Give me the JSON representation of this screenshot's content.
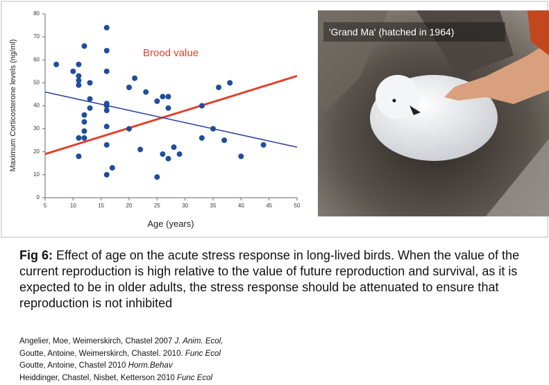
{
  "chart_data": {
    "type": "scatter",
    "ylabel": "Maximum Corticosterone levels (ng/ml)",
    "xlabel": "Age (years)",
    "annotation": "Brood value",
    "color": "#1f4e9a",
    "x": [
      7,
      10,
      11,
      11,
      11,
      11,
      12,
      13,
      13,
      13,
      12,
      12,
      12,
      12,
      11,
      11,
      16,
      16,
      16,
      16,
      16,
      16,
      16,
      16,
      16,
      17,
      20,
      21,
      20,
      22,
      23,
      25,
      26,
      27,
      27,
      25,
      26,
      27,
      28,
      29,
      33,
      33,
      35,
      36,
      38,
      37,
      40,
      44
    ],
    "values": [
      58,
      55,
      58,
      53,
      51,
      49,
      66,
      50,
      43,
      39,
      36,
      33,
      29,
      26,
      26,
      18,
      74,
      64,
      55,
      41,
      40,
      38,
      31,
      23,
      10,
      13,
      48,
      52,
      30,
      21,
      46,
      42,
      44,
      44,
      39,
      9,
      19,
      17,
      22,
      19,
      40,
      26,
      30,
      48,
      50,
      25,
      18,
      23
    ],
    "lines": [
      {
        "color": "#e0412c",
        "x": [
          5,
          50
        ],
        "values": [
          19,
          53
        ]
      },
      {
        "color": "#2a3f9e",
        "x": [
          5,
          50
        ],
        "values": [
          46,
          22
        ]
      }
    ],
    "xlim": [
      5,
      50
    ],
    "ylim": [
      0,
      80
    ],
    "xticks": [
      5,
      10,
      15,
      20,
      25,
      30,
      35,
      40,
      45,
      50
    ],
    "yticks": [
      0,
      10,
      20,
      30,
      40,
      50,
      60,
      70,
      80
    ]
  },
  "photo": {
    "label": "'Grand Ma' (hatched in 1964)"
  },
  "caption": {
    "label": "Fig 6:",
    "text": "Effect of age on the acute stress response in long-lived birds. When the value of the current reproduction is high relative to the value of future reproduction and survival, as it is expected to be in older adults, the stress response should be attenuated to ensure that reproduction is not inhibited"
  },
  "references": [
    {
      "authors": "Angelier, Moe, Weimerskirch, Chastel 2007",
      "journal": "J. Anim. Ecol,"
    },
    {
      "authors": "Goutte, Antoine, Weimerskirch, Chastel. 2010.",
      "journal": "Func Ecol"
    },
    {
      "authors": "Goutte, Antoine, Chastel 2010",
      "journal": "Horm.Behav"
    },
    {
      "authors": "Heiddinger, Chastel, Nisbet, Ketterson 2010",
      "journal": "Func Ecol"
    }
  ]
}
